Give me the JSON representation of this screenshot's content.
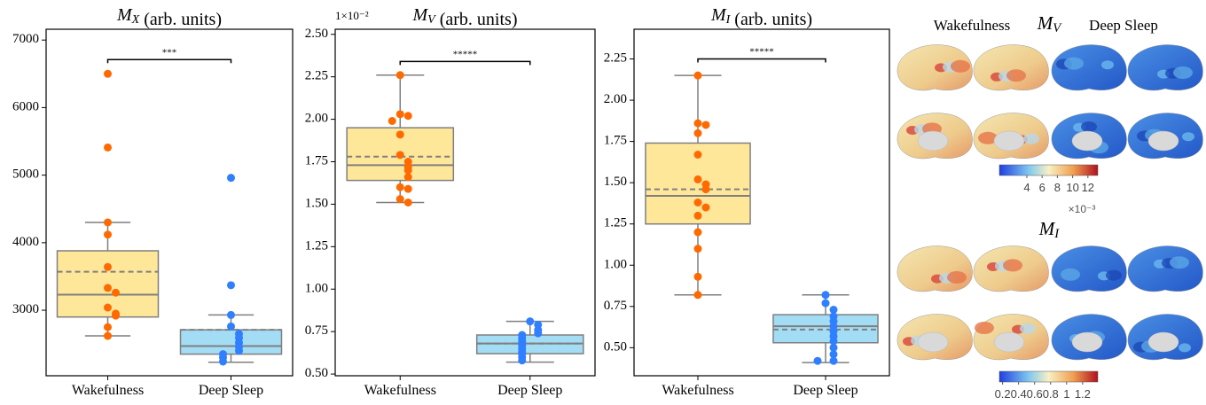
{
  "chart_data": [
    {
      "type": "box",
      "title": "M_X (arb. units)",
      "categories": [
        "Wakefulness",
        "Deep Sleep"
      ],
      "ylim": [
        2030,
        7160
      ],
      "yticks": [
        3000,
        4000,
        5000,
        6000,
        7000
      ],
      "boxes": [
        {
          "whislo": 2620,
          "q1": 2900,
          "median": 3230,
          "mean": 3570,
          "q3": 3880,
          "whishi": 4300,
          "color": "#ffe79a",
          "point_color": "#ff6a00",
          "points": [
            6500,
            5410,
            4300,
            4120,
            3640,
            3330,
            3260,
            3040,
            2950,
            2920,
            2750,
            2620
          ]
        },
        {
          "whislo": 2230,
          "q1": 2350,
          "median": 2470,
          "mean": 2710,
          "q3": 2710,
          "whishi": 2930,
          "color": "#a3dcf5",
          "point_color": "#2f7fff",
          "points": [
            4960,
            3370,
            2930,
            2760,
            2650,
            2590,
            2520,
            2460,
            2400,
            2350,
            2300,
            2240
          ]
        }
      ],
      "annotation": {
        "text": "***",
        "y": 6710
      }
    },
    {
      "type": "box",
      "title": "M_V (arb. units)",
      "offset_text": "1×10⁻²",
      "categories": [
        "Wakefulness",
        "Deep Sleep"
      ],
      "ylim": [
        0.49,
        2.53
      ],
      "yticks": [
        {
          "value": 0.5,
          "label": "0.50"
        },
        0.75,
        {
          "value": 1,
          "label": "1.00"
        },
        1.25,
        {
          "value": 1.5,
          "label": "1.50"
        },
        1.75,
        {
          "value": 2,
          "label": "2.00"
        },
        2.25,
        {
          "value": 2.5,
          "label": "2.50"
        }
      ],
      "boxes": [
        {
          "whislo": 1.51,
          "q1": 1.64,
          "median": 1.73,
          "mean": 1.78,
          "q3": 1.95,
          "whishi": 2.26,
          "color": "#ffe79a",
          "point_color": "#ff6a00",
          "points": [
            2.26,
            2.03,
            2.02,
            1.99,
            1.91,
            1.79,
            1.75,
            1.72,
            1.7,
            1.66,
            1.6,
            1.59,
            1.53,
            1.51
          ]
        },
        {
          "whislo": 0.57,
          "q1": 0.62,
          "median": 0.68,
          "mean": 0.68,
          "q3": 0.73,
          "whishi": 0.81,
          "color": "#a3dcf5",
          "point_color": "#2f7fff",
          "points": [
            0.81,
            0.79,
            0.76,
            0.74,
            0.73,
            0.71,
            0.69,
            0.67,
            0.65,
            0.63,
            0.62,
            0.6,
            0.58
          ]
        }
      ],
      "annotation": {
        "text": "*****",
        "y": 2.34
      }
    },
    {
      "type": "box",
      "title": "M_I (arb. units)",
      "categories": [
        "Wakefulness",
        "Deep Sleep"
      ],
      "ylim": [
        0.33,
        2.43
      ],
      "yticks": [
        {
          "value": 0.5,
          "label": "0.50"
        },
        0.75,
        {
          "value": 1,
          "label": "1.00"
        },
        1.25,
        {
          "value": 1.5,
          "label": "1.50"
        },
        1.75,
        {
          "value": 2,
          "label": "2.00"
        },
        2.25
      ],
      "boxes": [
        {
          "whislo": 0.82,
          "q1": 1.25,
          "median": 1.42,
          "mean": 1.46,
          "q3": 1.74,
          "whishi": 2.15,
          "color": "#ffe79a",
          "point_color": "#ff6a00",
          "points": [
            2.15,
            1.86,
            1.85,
            1.8,
            1.67,
            1.52,
            1.49,
            1.46,
            1.38,
            1.35,
            1.3,
            1.2,
            1.1,
            0.93,
            0.82
          ]
        },
        {
          "whislo": 0.41,
          "q1": 0.53,
          "median": 0.63,
          "mean": 0.61,
          "q3": 0.7,
          "whishi": 0.82,
          "color": "#a3dcf5",
          "point_color": "#2f7fff",
          "points": [
            0.82,
            0.77,
            0.73,
            0.69,
            0.66,
            0.63,
            0.6,
            0.57,
            0.54,
            0.5,
            0.46,
            0.42,
            0.42
          ]
        }
      ],
      "annotation": {
        "text": "*****",
        "y": 2.25
      }
    }
  ],
  "brain_maps": {
    "columns": [
      "Wakefulness",
      "Deep Sleep"
    ],
    "maps": [
      {
        "title": "M_V",
        "colorbar": {
          "lim": [
            0.4,
            13.3
          ],
          "ticks": [
            4,
            6,
            8,
            10,
            12
          ],
          "offset_text": "×10⁻³"
        }
      },
      {
        "title": "M_I",
        "colorbar": {
          "lim": [
            0.16,
            1.39
          ],
          "ticks": [
            0.2,
            0.4,
            0.6,
            0.8,
            1,
            1.2
          ]
        }
      }
    ]
  }
}
